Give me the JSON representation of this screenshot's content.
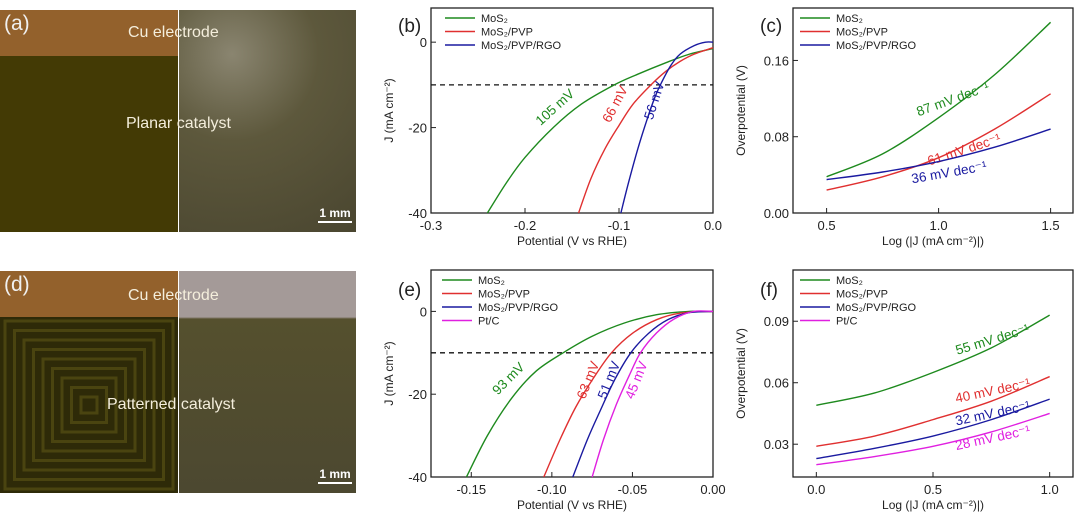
{
  "photos": [
    {
      "panel": "(a)",
      "top_label": "Cu electrode",
      "center_label": "Planar catalyst",
      "scale_bar": "1 mm"
    },
    {
      "panel": "(d)",
      "top_label": "Cu electrode",
      "center_label": "Patterned catalyst",
      "scale_bar": "1 mm"
    }
  ],
  "colors": {
    "MoS2": "#1e8a1e",
    "MoS2/PVP": "#e03030",
    "MoS2/PVP/RGO": "#1a1aa0",
    "Pt/C": "#e020e0"
  },
  "chart_data": [
    {
      "panel": "(b)",
      "type": "line",
      "xlabel": "Potential (V vs RHE)",
      "ylabel": "J (mA cm⁻²)",
      "xlim": [
        -0.3,
        0.0
      ],
      "ylim": [
        -40,
        8
      ],
      "xticks": [
        "-0.3",
        "-0.2",
        "-0.1",
        "0.0"
      ],
      "yticks": [
        "0",
        "-20",
        "-40"
      ],
      "reference_line": {
        "y": -10,
        "style": "dashed"
      },
      "legend": "top-left",
      "grid": false,
      "series": [
        {
          "name": "MoS₂",
          "color": "#1e8a1e",
          "annotation": "105 mV",
          "x": [
            -0.24,
            -0.22,
            -0.2,
            -0.17,
            -0.14,
            -0.105,
            -0.08,
            -0.05,
            -0.025,
            0.0
          ],
          "y": [
            -40,
            -33,
            -27,
            -20,
            -14.5,
            -10,
            -7.5,
            -4.8,
            -2.8,
            -1.5
          ]
        },
        {
          "name": "MoS₂/PVP",
          "color": "#e03030",
          "annotation": "66 mV",
          "x": [
            -0.143,
            -0.13,
            -0.115,
            -0.1,
            -0.085,
            -0.066,
            -0.05,
            -0.035,
            -0.02,
            0.0
          ],
          "y": [
            -40,
            -32,
            -25,
            -19.5,
            -14.5,
            -10,
            -6.8,
            -4.5,
            -2.8,
            -1.3
          ]
        },
        {
          "name": "MoS₂/PVP/RGO",
          "color": "#1a1aa0",
          "annotation": "56 mV",
          "x": [
            -0.098,
            -0.09,
            -0.08,
            -0.07,
            -0.062,
            -0.056,
            -0.045,
            -0.035,
            -0.02,
            -0.008,
            0.0
          ],
          "y": [
            -40,
            -33,
            -25,
            -18,
            -13,
            -10,
            -5.5,
            -2.8,
            -0.8,
            0,
            0
          ]
        }
      ]
    },
    {
      "panel": "(c)",
      "type": "line",
      "xlabel": "Log (|J (mA cm⁻²)|)",
      "ylabel": "Overpotential (V)",
      "xlim": [
        0.35,
        1.6
      ],
      "ylim": [
        0.0,
        0.215
      ],
      "xticks": [
        "0.5",
        "1.0",
        "1.5"
      ],
      "yticks": [
        "0.00",
        "0.08",
        "0.16"
      ],
      "legend": "top-left",
      "grid": false,
      "series": [
        {
          "name": "MoS₂",
          "color": "#1e8a1e",
          "annotation": "87 mV dec⁻¹",
          "x": [
            0.5,
            0.75,
            1.0,
            1.25,
            1.5
          ],
          "y": [
            0.038,
            0.062,
            0.1,
            0.145,
            0.2
          ]
        },
        {
          "name": "MoS₂/PVP",
          "color": "#e03030",
          "annotation": "61 mV dec⁻¹",
          "x": [
            0.5,
            0.75,
            1.0,
            1.25,
            1.5
          ],
          "y": [
            0.024,
            0.038,
            0.058,
            0.088,
            0.125
          ]
        },
        {
          "name": "MoS₂/PVP/RGO",
          "color": "#1a1aa0",
          "annotation": "36 mV dec⁻¹",
          "x": [
            0.5,
            0.75,
            1.0,
            1.25,
            1.5
          ],
          "y": [
            0.035,
            0.043,
            0.054,
            0.069,
            0.088
          ]
        }
      ]
    },
    {
      "panel": "(e)",
      "type": "line",
      "xlabel": "Potential (V vs RHE)",
      "ylabel": "J (mA cm⁻²)",
      "xlim": [
        -0.175,
        0.0
      ],
      "ylim": [
        -40,
        10
      ],
      "xticks": [
        "-0.15",
        "-0.10",
        "-0.05",
        "0.00"
      ],
      "yticks": [
        "0",
        "-20",
        "-40"
      ],
      "reference_line": {
        "y": -10,
        "style": "dashed"
      },
      "legend": "top-left",
      "grid": false,
      "series": [
        {
          "name": "MoS₂",
          "color": "#1e8a1e",
          "annotation": "93 mV",
          "x": [
            -0.153,
            -0.14,
            -0.125,
            -0.11,
            -0.093,
            -0.075,
            -0.055,
            -0.035,
            -0.015,
            0.0
          ],
          "y": [
            -40,
            -30,
            -21,
            -14.5,
            -10,
            -6,
            -2.8,
            -0.8,
            0,
            0
          ]
        },
        {
          "name": "MoS₂/PVP",
          "color": "#e03030",
          "annotation": "63 mV",
          "x": [
            -0.105,
            -0.095,
            -0.085,
            -0.074,
            -0.063,
            -0.05,
            -0.035,
            -0.02,
            0.0
          ],
          "y": [
            -40,
            -31,
            -23,
            -16,
            -10,
            -5.3,
            -2,
            -0.4,
            0
          ]
        },
        {
          "name": "MoS₂/PVP/RGO",
          "color": "#1a1aa0",
          "annotation": "51 mV",
          "x": [
            -0.087,
            -0.078,
            -0.07,
            -0.061,
            -0.051,
            -0.04,
            -0.028,
            -0.015,
            0.0
          ],
          "y": [
            -40,
            -31,
            -24,
            -16.5,
            -10,
            -5.3,
            -2,
            -0.3,
            0
          ]
        },
        {
          "name": "Pt/C",
          "color": "#e020e0",
          "annotation": "45 mV",
          "x": [
            -0.075,
            -0.068,
            -0.06,
            -0.052,
            -0.045,
            -0.035,
            -0.024,
            -0.012,
            0.0
          ],
          "y": [
            -40,
            -31,
            -22.5,
            -15.5,
            -10,
            -5.2,
            -1.8,
            0,
            0
          ]
        }
      ]
    },
    {
      "panel": "(f)",
      "type": "line",
      "xlabel": "Log (|J (mA cm⁻²)|)",
      "ylabel": "Overpotential (V)",
      "xlim": [
        -0.1,
        1.1
      ],
      "ylim": [
        0.014,
        0.115
      ],
      "xticks": [
        "0.0",
        "0.5",
        "1.0"
      ],
      "yticks": [
        "0.03",
        "0.06",
        "0.09"
      ],
      "legend": "top-left",
      "grid": false,
      "series": [
        {
          "name": "MoS₂",
          "color": "#1e8a1e",
          "annotation": "55 mV dec⁻¹",
          "x": [
            0,
            0.25,
            0.5,
            0.75,
            1.0
          ],
          "y": [
            0.049,
            0.055,
            0.065,
            0.077,
            0.093
          ]
        },
        {
          "name": "MoS₂/PVP",
          "color": "#e03030",
          "annotation": "40 mV dec⁻¹",
          "x": [
            0,
            0.25,
            0.5,
            0.75,
            1.0
          ],
          "y": [
            0.029,
            0.034,
            0.042,
            0.051,
            0.063
          ]
        },
        {
          "name": "MoS₂/PVP/RGO",
          "color": "#1a1aa0",
          "annotation": "32 mV dec⁻¹",
          "x": [
            0,
            0.25,
            0.5,
            0.75,
            1.0
          ],
          "y": [
            0.023,
            0.028,
            0.034,
            0.042,
            0.052
          ]
        },
        {
          "name": "Pt/C",
          "color": "#e020e0",
          "annotation": "28 mV dec⁻¹",
          "x": [
            0,
            0.25,
            0.5,
            0.75,
            1.0
          ],
          "y": [
            0.02,
            0.024,
            0.029,
            0.036,
            0.045
          ]
        }
      ]
    }
  ]
}
